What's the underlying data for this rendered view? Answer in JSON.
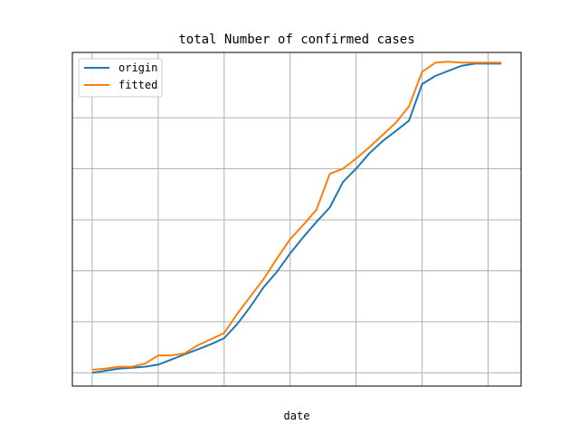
{
  "chart_data": {
    "type": "line",
    "title": "total Number of confirmed cases",
    "xlabel": "date",
    "ylabel": "",
    "grid": true,
    "legend_position": "top-left",
    "x_ticks_count": 7,
    "y_ticks_count": 6,
    "x": [
      0,
      1,
      2,
      3,
      4,
      5,
      6,
      7,
      8,
      9,
      10,
      11,
      12,
      13,
      14,
      15,
      16,
      17,
      18,
      19,
      20,
      21,
      22,
      23,
      24,
      25,
      26,
      27,
      28,
      29,
      30,
      31
    ],
    "series": [
      {
        "name": "origin",
        "color": "#1f77b4",
        "values": [
          0.0,
          0.02,
          0.04,
          0.05,
          0.06,
          0.08,
          0.13,
          0.18,
          0.23,
          0.28,
          0.34,
          0.48,
          0.65,
          0.84,
          0.99,
          1.17,
          1.33,
          1.48,
          1.62,
          1.87,
          2.0,
          2.15,
          2.27,
          2.37,
          2.47,
          2.83,
          2.91,
          2.96,
          3.01,
          3.03,
          3.03,
          3.03
        ]
      },
      {
        "name": "fitted",
        "color": "#ff7f0e",
        "values": [
          0.03,
          0.04,
          0.06,
          0.06,
          0.09,
          0.17,
          0.17,
          0.19,
          0.27,
          0.33,
          0.39,
          0.58,
          0.75,
          0.92,
          1.12,
          1.31,
          1.45,
          1.6,
          1.95,
          2.0,
          2.1,
          2.21,
          2.33,
          2.45,
          2.61,
          2.95,
          3.04,
          3.05,
          3.04,
          3.04,
          3.04,
          3.04
        ]
      }
    ],
    "xlim": [
      0,
      31
    ],
    "ylim": [
      -0.13,
      3.14
    ]
  }
}
